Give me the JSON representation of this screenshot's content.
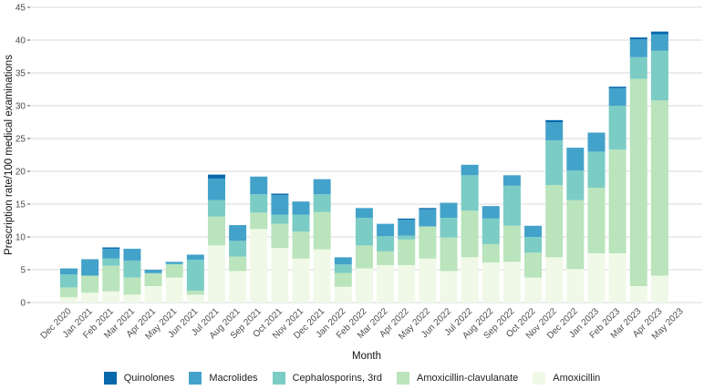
{
  "chart_data": {
    "type": "bar",
    "stacked": true,
    "title": "",
    "xlabel": "Month",
    "ylabel": "Prescription rate/100 medical examinations",
    "ylim": [
      0,
      45
    ],
    "yticks": [
      0,
      5,
      10,
      15,
      20,
      25,
      30,
      35,
      40,
      45
    ],
    "grid": "horizontal",
    "legend_position": "bottom",
    "x_tick_labels": [
      "Dec 2020",
      "Jan 2021",
      "Feb 2021",
      "Mar 2021",
      "Apr 2021",
      "May 2021",
      "Jun 2021",
      "Jul 2021",
      "Aug 2021",
      "Sep 2021",
      "Oct 2021",
      "Nov 2021",
      "Dec 2021",
      "Jan 2022",
      "Feb 2022",
      "Mar 2022",
      "Apr 2022",
      "May 2022",
      "Jun 2022",
      "Jul 2022",
      "Aug 2022",
      "Sep 2022",
      "Oct 2022",
      "Nov 2022",
      "Dec 2022",
      "Jan 2023",
      "Feb 2023",
      "Mar 2023",
      "Apr 2023",
      "May 2023"
    ],
    "categories": [
      "Dec 2020",
      "Jan 2021",
      "Feb 2021",
      "Mar 2021",
      "Apr 2021",
      "May 2021",
      "Jun 2021",
      "Jul 2021",
      "Aug 2021",
      "Sep 2021",
      "Oct 2021",
      "Nov 2021",
      "Dec 2021",
      "Jan 2022",
      "Feb 2022",
      "Mar 2022",
      "Apr 2022",
      "May 2022",
      "Jun 2022",
      "Jul 2022",
      "Aug 2022",
      "Sep 2022",
      "Oct 2022",
      "Nov 2022",
      "Dec 2022",
      "Jan 2023",
      "Feb 2023",
      "Mar 2023",
      "Apr 2023"
    ],
    "series": [
      {
        "name": "Amoxicillin",
        "color": "#f0f9e8",
        "values": [
          0.8,
          1.5,
          1.7,
          1.2,
          2.5,
          3.8,
          1.2,
          8.7,
          4.8,
          11.2,
          8.3,
          6.7,
          8.1,
          2.4,
          5.2,
          5.7,
          5.7,
          6.7,
          4.8,
          6.9,
          6.1,
          6.2,
          3.8,
          6.9,
          5.1,
          7.5,
          7.5,
          2.5,
          4.1
        ]
      },
      {
        "name": "Amoxicillin-clavulanate",
        "color": "#bae4bc",
        "values": [
          1.5,
          2.6,
          3.9,
          2.6,
          1.9,
          2.0,
          0.6,
          4.4,
          2.2,
          2.5,
          3.7,
          4.1,
          5.7,
          2.1,
          3.5,
          2.1,
          3.9,
          4.9,
          5.1,
          7.1,
          2.8,
          5.5,
          3.8,
          11.0,
          10.5,
          10.0,
          15.8,
          31.6,
          26.7
        ]
      },
      {
        "name": "Cephalosporins, 3rd",
        "color": "#7bccc4",
        "values": [
          2.0,
          0.0,
          1.1,
          2.6,
          0.1,
          0.1,
          4.7,
          2.5,
          2.4,
          2.8,
          1.4,
          2.6,
          2.7,
          1.3,
          4.2,
          2.3,
          0.6,
          0.0,
          3.0,
          5.4,
          3.9,
          6.1,
          2.4,
          6.8,
          4.5,
          5.5,
          6.7,
          3.3,
          7.6
        ]
      },
      {
        "name": "Macrolides",
        "color": "#43a2ca",
        "values": [
          0.9,
          2.5,
          1.5,
          1.8,
          0.5,
          0.3,
          0.8,
          3.3,
          2.4,
          2.7,
          3.0,
          2.0,
          2.3,
          1.1,
          1.5,
          1.9,
          2.4,
          2.6,
          2.3,
          1.6,
          1.9,
          1.6,
          1.7,
          2.8,
          3.5,
          2.9,
          2.7,
          2.7,
          2.5
        ]
      },
      {
        "name": "Quinolones",
        "color": "#0868ac",
        "values": [
          0,
          0,
          0.2,
          0,
          0,
          0,
          0,
          0.6,
          0,
          0,
          0.2,
          0,
          0,
          0,
          0,
          0,
          0.2,
          0.2,
          0,
          0,
          0,
          0,
          0,
          0.3,
          0,
          0,
          0.2,
          0.3,
          0.4
        ]
      }
    ]
  },
  "legend": {
    "items": [
      {
        "label": "Quinolones",
        "color": "#0868ac"
      },
      {
        "label": "Macrolides",
        "color": "#43a2ca"
      },
      {
        "label": "Cephalosporins, 3rd",
        "color": "#7bccc4"
      },
      {
        "label": "Amoxicillin-clavulanate",
        "color": "#bae4bc"
      },
      {
        "label": "Amoxicillin",
        "color": "#f0f9e8"
      }
    ]
  }
}
